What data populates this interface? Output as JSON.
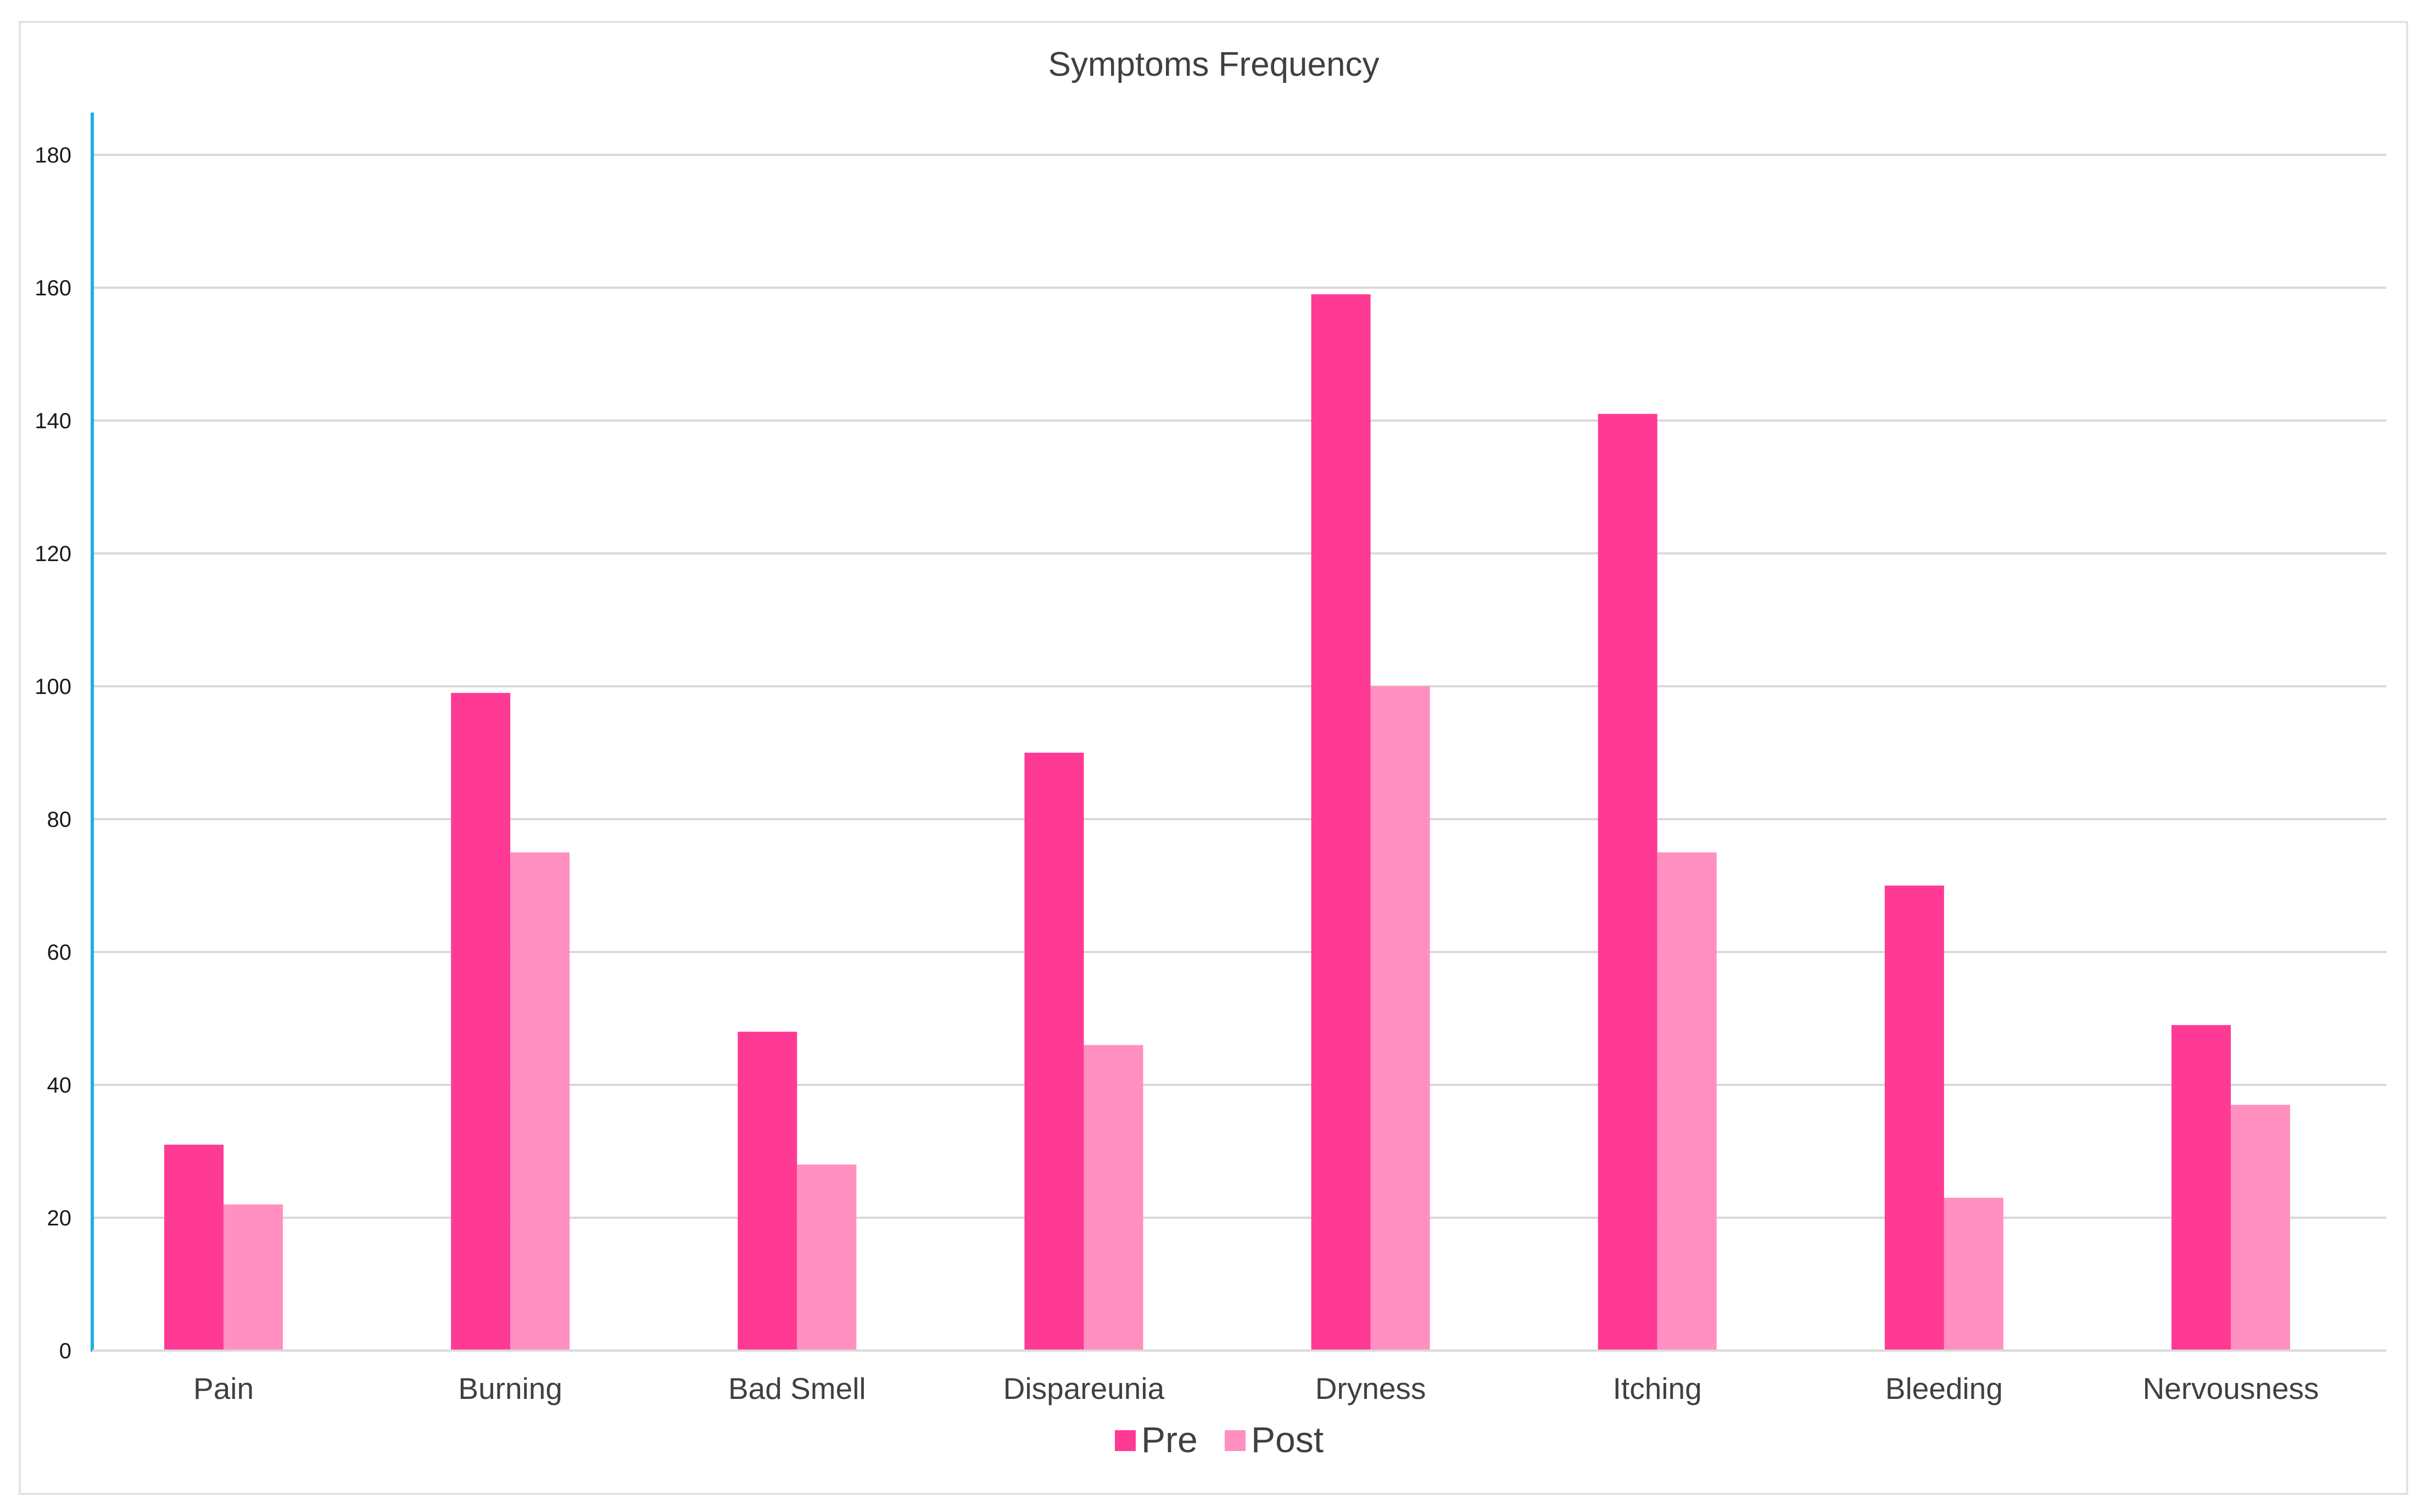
{
  "chart_data": {
    "type": "bar",
    "title": "Symptoms Frequency",
    "xlabel": "",
    "ylabel": "",
    "ylim": [
      0,
      180
    ],
    "yticks": [
      0,
      20,
      40,
      60,
      80,
      100,
      120,
      140,
      160,
      180
    ],
    "grid": true,
    "legend_position": "bottom-center",
    "categories": [
      "Pain",
      "Burning",
      "Bad Smell",
      "Dispareunia",
      "Dryness",
      "Itching",
      "Bleeding",
      "Nervousness"
    ],
    "series": [
      {
        "name": "Pre",
        "color": "#ff3a94",
        "values": [
          31,
          99,
          48,
          90,
          159,
          141,
          70,
          49
        ]
      },
      {
        "name": "Post",
        "color": "#ff90c0",
        "values": [
          22,
          75,
          28,
          46,
          100,
          75,
          23,
          37
        ]
      }
    ],
    "axis_color": "#1ab0e6",
    "grid_color": "#d9d9d9"
  }
}
